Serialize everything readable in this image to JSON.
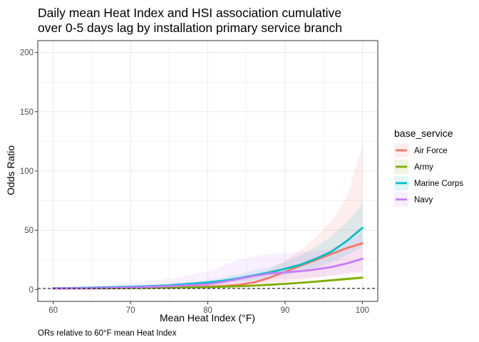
{
  "chart_data": {
    "type": "line",
    "title_lines": [
      "Daily mean Heat Index and HSI association cumulative",
      "over 0-5 days lag by installation primary service branch"
    ],
    "xlabel": "Mean Heat Index (°F)",
    "ylabel": "Odds Ratio",
    "caption": "ORs relative to 60°F mean Heat Index",
    "xlim": [
      58,
      102
    ],
    "ylim": [
      -10,
      210
    ],
    "x_ticks": [
      60,
      70,
      80,
      90,
      100
    ],
    "y_ticks": [
      0,
      50,
      100,
      150,
      200
    ],
    "reference_line": {
      "y": 1,
      "style": "dashed"
    },
    "grid": true,
    "legend": {
      "title": "base_service",
      "placement": "right"
    },
    "series": [
      {
        "name": "Air Force",
        "color": "#F8766D",
        "x": [
          60,
          65,
          70,
          75,
          80,
          82,
          84,
          86,
          88,
          90,
          92,
          94,
          96,
          98,
          100
        ],
        "y": [
          1,
          1,
          1.3,
          1.8,
          2.5,
          3,
          4,
          6,
          10,
          15,
          20,
          25,
          30,
          35,
          39
        ],
        "upper": [
          1,
          1.2,
          1.5,
          2.5,
          5,
          7,
          9,
          12,
          17,
          24,
          33,
          44,
          58,
          78,
          121
        ],
        "lower": [
          1,
          0.8,
          1.0,
          1.2,
          1.5,
          2,
          2.5,
          3,
          4.5,
          6,
          8,
          10,
          12,
          14,
          16
        ]
      },
      {
        "name": "Army",
        "color": "#7CAE00",
        "x": [
          60,
          65,
          70,
          75,
          80,
          82,
          84,
          86,
          88,
          90,
          92,
          94,
          96,
          98,
          100
        ],
        "y": [
          1,
          1,
          1.3,
          1.6,
          2,
          2.4,
          2.8,
          3.3,
          4,
          4.8,
          5.7,
          6.7,
          7.8,
          8.9,
          10
        ],
        "upper": [
          1,
          1.1,
          1.5,
          1.9,
          2.4,
          2.8,
          3.3,
          3.9,
          4.7,
          5.6,
          6.7,
          7.9,
          9.2,
          10.5,
          12
        ],
        "lower": [
          1,
          0.9,
          1.1,
          1.4,
          1.7,
          2.0,
          2.4,
          2.8,
          3.4,
          4.0,
          4.8,
          5.6,
          6.5,
          7.4,
          8.5
        ]
      },
      {
        "name": "Marine Corps",
        "color": "#00BFC4",
        "x": [
          60,
          65,
          70,
          75,
          80,
          82,
          84,
          86,
          88,
          90,
          92,
          94,
          96,
          98,
          100
        ],
        "y": [
          1,
          1.6,
          2.3,
          3.5,
          6,
          7.5,
          9.5,
          12,
          14.5,
          17.5,
          21,
          26,
          32,
          41,
          52
        ],
        "upper": [
          1,
          2,
          3,
          4.5,
          8,
          10,
          13,
          16,
          19,
          23,
          29,
          36,
          45,
          57,
          72
        ],
        "lower": [
          1,
          1.2,
          1.7,
          2.5,
          4,
          5,
          6.5,
          8,
          10,
          12,
          15,
          18.5,
          23,
          29,
          36
        ]
      },
      {
        "name": "Navy",
        "color": "#C77CFF",
        "x": [
          60,
          65,
          70,
          75,
          80,
          82,
          84,
          86,
          88,
          90,
          92,
          94,
          96,
          98,
          100
        ],
        "y": [
          1,
          1.2,
          1.8,
          2.8,
          4.5,
          6.5,
          9,
          11.5,
          13.5,
          14.5,
          15.5,
          17,
          19,
          22,
          26
        ],
        "upper": [
          1,
          2.5,
          5,
          9,
          15,
          20,
          25,
          28,
          30,
          31,
          31.5,
          32.5,
          35,
          40,
          48
        ],
        "lower": [
          1,
          0.5,
          0.6,
          0.7,
          1.2,
          2,
          3.5,
          5.5,
          7.5,
          8.5,
          9.5,
          10.5,
          11.5,
          12.5,
          14
        ]
      }
    ]
  }
}
